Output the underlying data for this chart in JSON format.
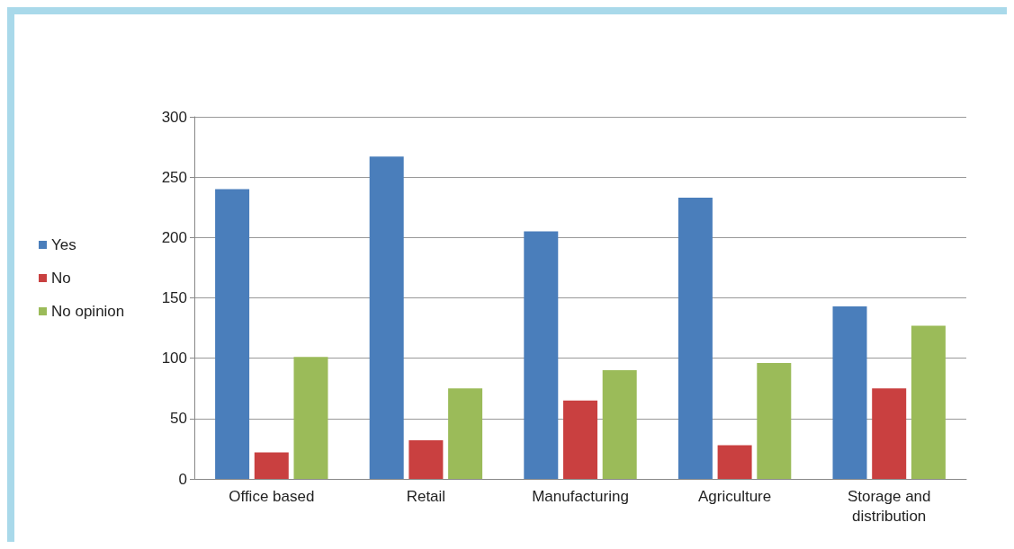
{
  "chart_data": {
    "type": "bar",
    "categories": [
      "Office based",
      "Retail",
      "Manufacturing",
      "Agriculture",
      "Storage and\ndistribution"
    ],
    "series": [
      {
        "name": "Yes",
        "color": "#4a7ebb",
        "values": [
          240,
          267,
          205,
          233,
          143
        ]
      },
      {
        "name": "No",
        "color": "#c94040",
        "values": [
          22,
          32,
          65,
          28,
          75
        ]
      },
      {
        "name": "No opinion",
        "color": "#9bbb59",
        "values": [
          101,
          75,
          90,
          96,
          127
        ]
      }
    ],
    "ylim": [
      0,
      300
    ],
    "yticks": [
      0,
      50,
      100,
      150,
      200,
      250,
      300
    ],
    "grid": "y",
    "legend": "left"
  }
}
